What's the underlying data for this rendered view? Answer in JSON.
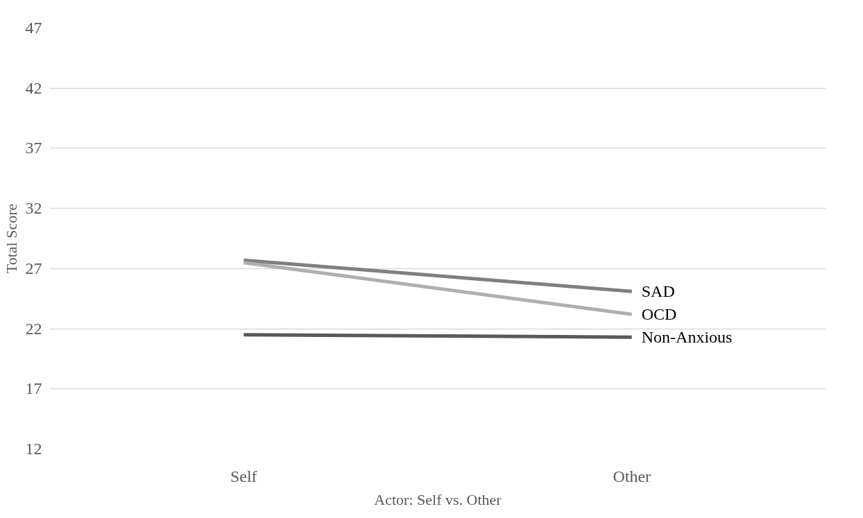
{
  "chart_data": {
    "type": "line",
    "xlabel": "Actor: Self vs. Other",
    "ylabel": "Total Score",
    "categories": [
      "Self",
      "Other"
    ],
    "series": [
      {
        "name": "SAD",
        "color": "#7f7f7f",
        "values": [
          27.7,
          25.1
        ]
      },
      {
        "name": "OCD",
        "color": "#afafaf",
        "values": [
          27.5,
          23.2
        ]
      },
      {
        "name": "Non-Anxious",
        "color": "#595959",
        "values": [
          21.5,
          21.3
        ]
      }
    ],
    "ylim": [
      12,
      47
    ],
    "yticks": [
      12,
      17,
      22,
      27,
      32,
      37,
      42,
      47
    ],
    "grid": "y",
    "legend": false,
    "marker": "none",
    "line_style": "solid"
  }
}
